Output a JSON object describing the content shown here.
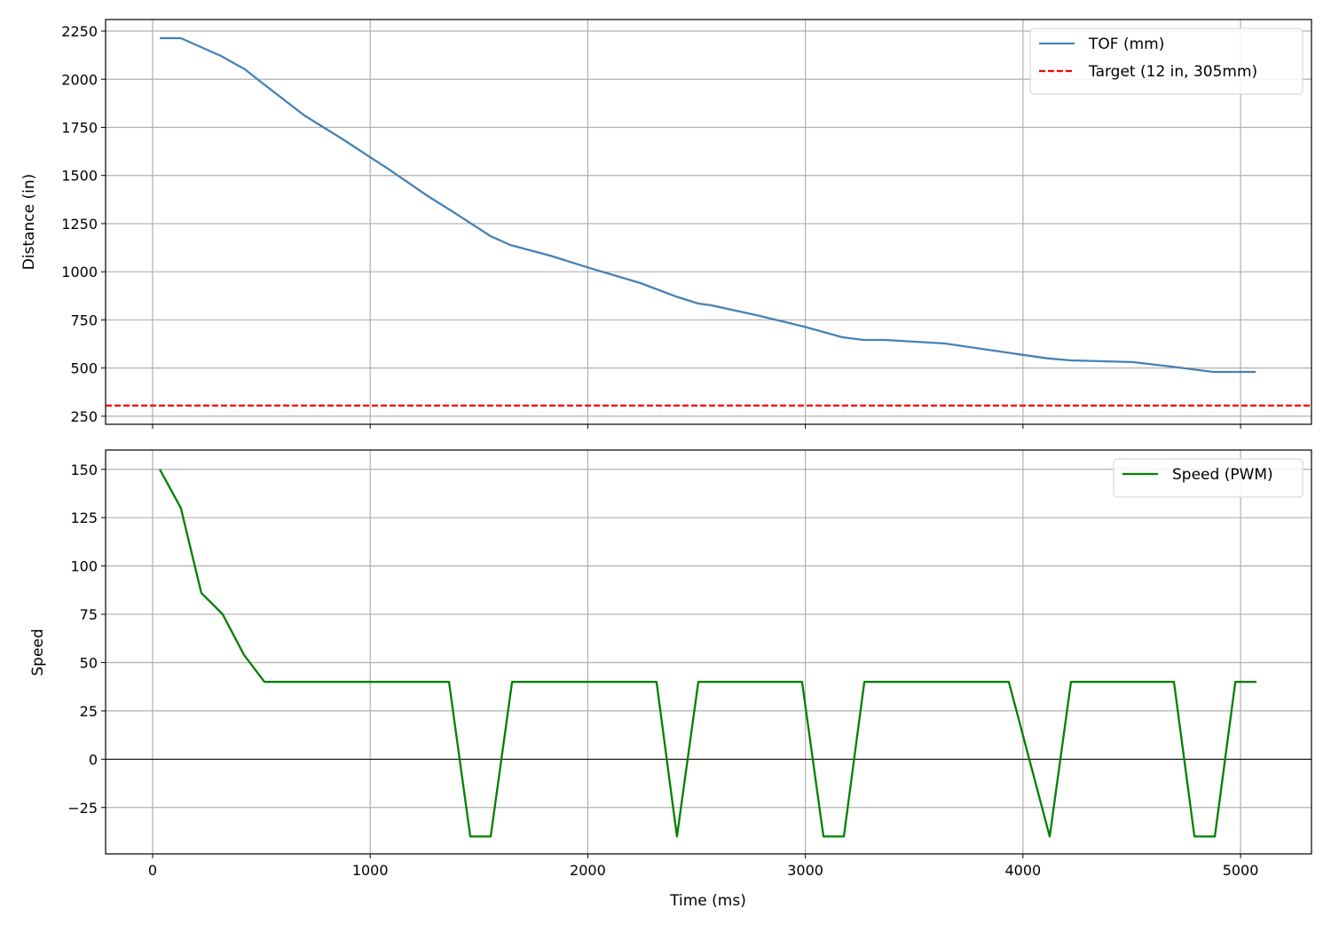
{
  "chart_data": [
    {
      "type": "line",
      "xlabel": "",
      "ylabel": "Distance (in)",
      "xlim": [
        -216,
        5326
      ],
      "ylim": [
        208,
        2310
      ],
      "x_ticks": [
        0,
        1000,
        2000,
        3000,
        4000,
        5000
      ],
      "y_ticks": [
        250,
        500,
        750,
        1000,
        1250,
        1500,
        1750,
        2000,
        2250
      ],
      "y_tick_labels": [
        "250",
        "500",
        "750",
        "1000",
        "1250",
        "1500",
        "1750",
        "2000",
        "2250"
      ],
      "grid": true,
      "legend": "top-right",
      "series": [
        {
          "name": "TOF (mm)",
          "color": "#4682b4",
          "style": "solid",
          "x": [
            33,
            130,
            314,
            424,
            497,
            697,
            881,
            999,
            1081,
            1260,
            1370,
            1554,
            1644,
            1827,
            2007,
            2243,
            2410,
            2508,
            2566,
            2790,
            2994,
            3169,
            3267,
            3365,
            3638,
            3972,
            4115,
            4221,
            4503,
            4678,
            4873,
            5070
          ],
          "y": [
            2213,
            2213,
            2121,
            2052,
            1987,
            1812,
            1683,
            1596,
            1536,
            1397,
            1319,
            1185,
            1139,
            1084,
            1020,
            941,
            870,
            835,
            826,
            771,
            715,
            660,
            646,
            646,
            628,
            573,
            550,
            540,
            531,
            508,
            480,
            480
          ]
        },
        {
          "name": "Target (12 in, 305mm)",
          "color": "#ff0000",
          "style": "dashed",
          "hline": 305
        }
      ]
    },
    {
      "type": "line",
      "xlabel": "Time (ms)",
      "ylabel": "Speed",
      "xlim": [
        -216,
        5326
      ],
      "ylim": [
        -49,
        160
      ],
      "x_ticks": [
        0,
        1000,
        2000,
        3000,
        4000,
        5000
      ],
      "x_tick_labels": [
        "0",
        "1000",
        "2000",
        "3000",
        "4000",
        "5000"
      ],
      "y_ticks": [
        -25,
        0,
        25,
        50,
        75,
        100,
        125,
        150
      ],
      "y_tick_labels": [
        "−25",
        "0",
        "25",
        "50",
        "75",
        "100",
        "125",
        "150"
      ],
      "grid": true,
      "zero_line": true,
      "legend": "top-right",
      "series": [
        {
          "name": "Speed (PWM)",
          "color": "#008000",
          "style": "solid",
          "x": [
            33,
            130,
            224,
            322,
            420,
            514,
            1362,
            1460,
            1554,
            1652,
            2316,
            2410,
            2508,
            2985,
            3083,
            3177,
            3271,
            3935,
            4123,
            4221,
            4694,
            4788,
            4882,
            4976,
            5073
          ],
          "y": [
            150,
            130,
            86,
            75,
            54,
            40,
            40,
            -40,
            -40,
            40,
            40,
            -40,
            40,
            40,
            -40,
            -40,
            40,
            40,
            -40,
            40,
            40,
            -40,
            -40,
            40,
            40
          ]
        }
      ]
    }
  ]
}
